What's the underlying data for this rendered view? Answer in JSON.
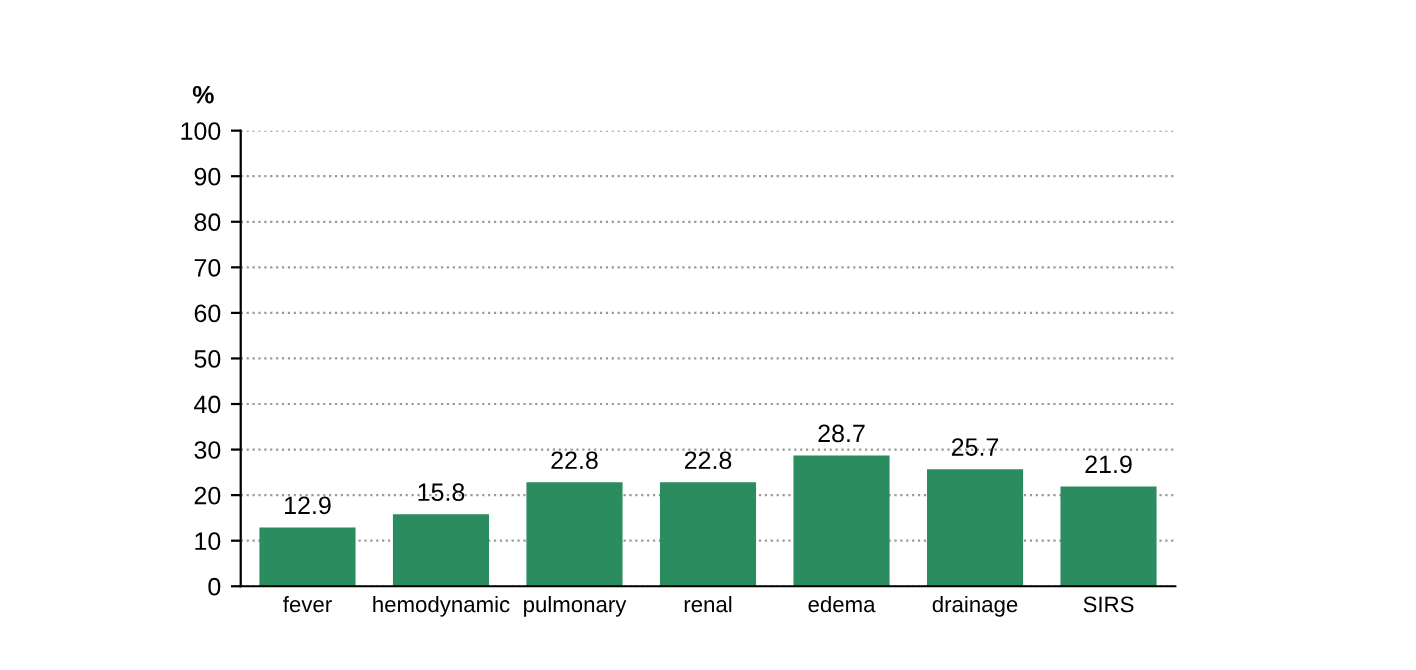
{
  "chart_data": {
    "type": "bar",
    "ylabel": "%",
    "categories": [
      "fever",
      "hemodynamic",
      "pulmonary",
      "renal",
      "edema",
      "drainage",
      "SIRS"
    ],
    "values": [
      12.9,
      15.8,
      22.8,
      22.8,
      28.7,
      25.7,
      21.9
    ],
    "color": "#2b8c60",
    "data_labels": true,
    "ylim": [
      0,
      100
    ],
    "yticks": [
      0,
      10,
      20,
      30,
      40,
      50,
      60,
      70,
      80,
      90,
      100
    ],
    "grid": "y",
    "line_style": "dotted"
  }
}
